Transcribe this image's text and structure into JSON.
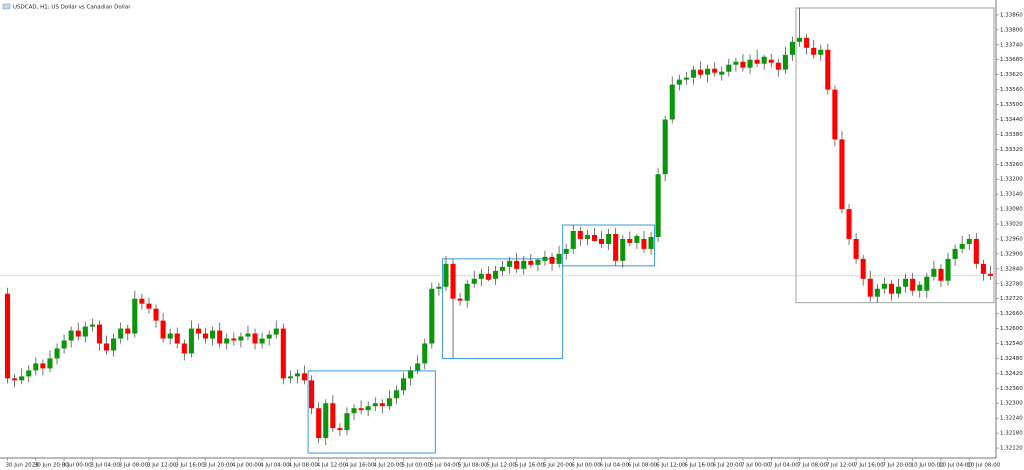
{
  "chart_data": {
    "type": "candlestick",
    "title": "USDCAD, H1: US Dollar vs Canadian Dollar",
    "up_color": "#0a960a",
    "down_color": "#ff0000",
    "ylim": [
      1.3208,
      1.3392
    ],
    "yticks": [
      {
        "value": 1.3212,
        "label": "1.32120"
      },
      {
        "value": 1.3218,
        "label": "1.32180"
      },
      {
        "value": 1.3224,
        "label": "1.32240"
      },
      {
        "value": 1.323,
        "label": "1.32300"
      },
      {
        "value": 1.3236,
        "label": "1.32360"
      },
      {
        "value": 1.3242,
        "label": "1.32420"
      },
      {
        "value": 1.3248,
        "label": "1.32480"
      },
      {
        "value": 1.3254,
        "label": "1.32540"
      },
      {
        "value": 1.326,
        "label": "1.32600"
      },
      {
        "value": 1.3266,
        "label": "1.32660"
      },
      {
        "value": 1.3272,
        "label": "1.32720"
      },
      {
        "value": 1.3278,
        "label": "1.32780"
      },
      {
        "value": 1.3284,
        "label": "1.32840"
      },
      {
        "value": 1.329,
        "label": "1.32900"
      },
      {
        "value": 1.3296,
        "label": "1.32960"
      },
      {
        "value": 1.3302,
        "label": "1.33020"
      },
      {
        "value": 1.3308,
        "label": "1.33080"
      },
      {
        "value": 1.3314,
        "label": "1.33140"
      },
      {
        "value": 1.332,
        "label": "1.33200"
      },
      {
        "value": 1.3326,
        "label": "1.33260"
      },
      {
        "value": 1.3332,
        "label": "1.33320"
      },
      {
        "value": 1.3338,
        "label": "1.33380"
      },
      {
        "value": 1.3344,
        "label": "1.33440"
      },
      {
        "value": 1.335,
        "label": "1.33500"
      },
      {
        "value": 1.3356,
        "label": "1.33560"
      },
      {
        "value": 1.3362,
        "label": "1.33620"
      },
      {
        "value": 1.3368,
        "label": "1.33680"
      },
      {
        "value": 1.3374,
        "label": "1.33740"
      },
      {
        "value": 1.338,
        "label": "1.33800"
      },
      {
        "value": 1.3386,
        "label": "1.33860"
      }
    ],
    "categories": [
      "30 Jun 2023",
      null,
      null,
      null,
      "30 Jun 20:00",
      null,
      null,
      null,
      "3 Jul 00:00",
      null,
      null,
      null,
      "3 Jul 04:00",
      null,
      null,
      null,
      "3 Jul 08:00",
      null,
      null,
      null,
      "3 Jul 12:00",
      null,
      null,
      null,
      "3 Jul 16:00",
      null,
      null,
      null,
      "3 Jul 20:00",
      null,
      null,
      null,
      "4 Jul 00:00",
      null,
      null,
      null,
      "4 Jul 04:00",
      null,
      null,
      null,
      "4 Jul 08:00",
      null,
      null,
      null,
      "4 Jul 12:00",
      null,
      null,
      null,
      "4 Jul 16:00",
      null,
      null,
      null,
      "4 Jul 20:00",
      null,
      null,
      null,
      "5 Jul 00:00",
      null,
      null,
      null,
      "5 Jul 04:00",
      null,
      null,
      null,
      "5 Jul 08:00",
      null,
      null,
      null,
      "5 Jul 12:00",
      null,
      null,
      null,
      "5 Jul 16:00",
      null,
      null,
      null,
      "5 Jul 20:00",
      null,
      null,
      null,
      "6 Jul 00:00",
      null,
      null,
      null,
      "6 Jul 04:00",
      null,
      null,
      null,
      "6 Jul 08:00",
      null,
      null,
      null,
      "6 Jul 12:00",
      null,
      null,
      null,
      "6 Jul 16:00",
      null,
      null,
      null,
      "6 Jul 20:00",
      null,
      null,
      null,
      "7 Jul 00:00",
      null,
      null,
      null,
      "7 Jul 04:00",
      null,
      null,
      null,
      "7 Jul 08:00",
      null,
      null,
      null,
      "7 Jul 12:00",
      null,
      null,
      null,
      "7 Jul 16:00",
      null,
      null,
      null,
      "7 Jul 20:00",
      null,
      null,
      null,
      "10 Jul 00:00",
      null,
      null,
      null,
      "10 Jul 04:00",
      null,
      null,
      null,
      "10 Jul 08:00",
      null,
      null,
      null
    ],
    "ohlc": [
      [
        1.3274,
        1.32764,
        1.3238,
        1.324
      ],
      [
        1.324,
        1.32416,
        1.32364,
        1.32392
      ],
      [
        1.32392,
        1.3244,
        1.32376,
        1.32408
      ],
      [
        1.32408,
        1.32452,
        1.32384,
        1.32432
      ],
      [
        1.32432,
        1.32484,
        1.32412,
        1.3246
      ],
      [
        1.3246,
        1.32476,
        1.32412,
        1.3244
      ],
      [
        1.3244,
        1.32512,
        1.32424,
        1.3248
      ],
      [
        1.3248,
        1.3254,
        1.32456,
        1.3252
      ],
      [
        1.3252,
        1.32576,
        1.325,
        1.32552
      ],
      [
        1.32552,
        1.32608,
        1.32524,
        1.32592
      ],
      [
        1.32592,
        1.32624,
        1.32552,
        1.32568
      ],
      [
        1.32568,
        1.32628,
        1.32544,
        1.32608
      ],
      [
        1.32608,
        1.3264,
        1.32588,
        1.32616
      ],
      [
        1.32616,
        1.32632,
        1.32512,
        1.3254
      ],
      [
        1.3254,
        1.32572,
        1.32496,
        1.32512
      ],
      [
        1.32512,
        1.3258,
        1.32488,
        1.3256
      ],
      [
        1.3256,
        1.32624,
        1.3254,
        1.326
      ],
      [
        1.326,
        1.32616,
        1.32552,
        1.3258
      ],
      [
        1.3258,
        1.32752,
        1.32564,
        1.3272
      ],
      [
        1.3272,
        1.3274,
        1.32676,
        1.327
      ],
      [
        1.327,
        1.32724,
        1.3266,
        1.3268
      ],
      [
        1.3268,
        1.32696,
        1.32604,
        1.32632
      ],
      [
        1.32632,
        1.32664,
        1.32544,
        1.3256
      ],
      [
        1.3256,
        1.326,
        1.32536,
        1.3258
      ],
      [
        1.3258,
        1.32604,
        1.3252,
        1.3254
      ],
      [
        1.3254,
        1.32556,
        1.32472,
        1.325
      ],
      [
        1.325,
        1.32632,
        1.32484,
        1.326
      ],
      [
        1.326,
        1.3262,
        1.32556,
        1.3258
      ],
      [
        1.3258,
        1.32604,
        1.3254,
        1.3256
      ],
      [
        1.3256,
        1.32608,
        1.32532,
        1.32592
      ],
      [
        1.32592,
        1.32624,
        1.32524,
        1.3254
      ],
      [
        1.3254,
        1.3258,
        1.32516,
        1.3256
      ],
      [
        1.3256,
        1.32584,
        1.32532,
        1.32552
      ],
      [
        1.32552,
        1.32584,
        1.32524,
        1.32568
      ],
      [
        1.32568,
        1.32612,
        1.32552,
        1.3258
      ],
      [
        1.3258,
        1.326,
        1.32516,
        1.3254
      ],
      [
        1.3254,
        1.32584,
        1.3252,
        1.3256
      ],
      [
        1.3256,
        1.32592,
        1.32532,
        1.32576
      ],
      [
        1.32576,
        1.32632,
        1.3256,
        1.326
      ],
      [
        1.326,
        1.3262,
        1.32376,
        1.324
      ],
      [
        1.324,
        1.32432,
        1.3238,
        1.32408
      ],
      [
        1.32408,
        1.32436,
        1.3238,
        1.3242
      ],
      [
        1.3242,
        1.32452,
        1.32376,
        1.32392
      ],
      [
        1.32392,
        1.32412,
        1.32256,
        1.3228
      ],
      [
        1.3228,
        1.32304,
        1.3214,
        1.3216
      ],
      [
        1.3216,
        1.32316,
        1.32132,
        1.323
      ],
      [
        1.323,
        1.32332,
        1.32184,
        1.322
      ],
      [
        1.322,
        1.3222,
        1.32168,
        1.32192
      ],
      [
        1.32192,
        1.32284,
        1.32172,
        1.3226
      ],
      [
        1.3226,
        1.32296,
        1.32232,
        1.3228
      ],
      [
        1.3228,
        1.32312,
        1.32256,
        1.32272
      ],
      [
        1.32272,
        1.32308,
        1.32248,
        1.32288
      ],
      [
        1.32288,
        1.32324,
        1.32268,
        1.323
      ],
      [
        1.323,
        1.32316,
        1.3226,
        1.32288
      ],
      [
        1.32288,
        1.32352,
        1.32272,
        1.3232
      ],
      [
        1.3232,
        1.32372,
        1.32296,
        1.32352
      ],
      [
        1.32352,
        1.32424,
        1.32332,
        1.324
      ],
      [
        1.324,
        1.32448,
        1.32372,
        1.32432
      ],
      [
        1.32432,
        1.32492,
        1.32416,
        1.3246
      ],
      [
        1.3246,
        1.3256,
        1.32436,
        1.3254
      ],
      [
        1.3254,
        1.32784,
        1.3252,
        1.3276
      ],
      [
        1.3276,
        1.32784,
        1.32732,
        1.32768
      ],
      [
        1.32768,
        1.32892,
        1.32752,
        1.3286
      ],
      [
        1.3286,
        1.3288,
        1.3248,
        1.3272
      ],
      [
        1.3272,
        1.32744,
        1.32692,
        1.32712
      ],
      [
        1.32712,
        1.32796,
        1.32684,
        1.3278
      ],
      [
        1.3278,
        1.32832,
        1.32764,
        1.328
      ],
      [
        1.328,
        1.3284,
        1.3277,
        1.3282
      ],
      [
        1.3282,
        1.3285,
        1.3279,
        1.32796
      ],
      [
        1.328,
        1.32852,
        1.32776,
        1.32832
      ],
      [
        1.32832,
        1.32872,
        1.32812,
        1.32848
      ],
      [
        1.32848,
        1.32888,
        1.3282,
        1.32872
      ],
      [
        1.32872,
        1.32904,
        1.32824,
        1.3284
      ],
      [
        1.3284,
        1.32892,
        1.32816,
        1.32872
      ],
      [
        1.32872,
        1.329,
        1.32844,
        1.32856
      ],
      [
        1.32856,
        1.32884,
        1.3283,
        1.32876
      ],
      [
        1.32872,
        1.32912,
        1.32852,
        1.32888
      ],
      [
        1.32888,
        1.32904,
        1.32832,
        1.3286
      ],
      [
        1.3286,
        1.32932,
        1.32844,
        1.329
      ],
      [
        1.329,
        1.3294,
        1.32876,
        1.3292
      ],
      [
        1.3292,
        1.33016,
        1.329,
        1.32992
      ],
      [
        1.32992,
        1.33008,
        1.32932,
        1.3296
      ],
      [
        1.3296,
        1.32996,
        1.32936,
        1.32976
      ],
      [
        1.32976,
        1.33004,
        1.3295,
        1.32952
      ],
      [
        1.3296,
        1.32992,
        1.32924,
        1.3294
      ],
      [
        1.3294,
        1.33,
        1.32916,
        1.3298
      ],
      [
        1.3298,
        1.33004,
        1.32852,
        1.32872
      ],
      [
        1.32872,
        1.32976,
        1.32844,
        1.3296
      ],
      [
        1.3296,
        1.3299,
        1.3293,
        1.32944
      ],
      [
        1.32944,
        1.3298,
        1.3292,
        1.32972
      ],
      [
        1.3296,
        1.32992,
        1.32904,
        1.3292
      ],
      [
        1.3292,
        1.32988,
        1.32896,
        1.32968
      ],
      [
        1.32968,
        1.33244,
        1.32948,
        1.3322
      ],
      [
        1.3322,
        1.33456,
        1.33192,
        1.3344
      ],
      [
        1.3344,
        1.33612,
        1.33424,
        1.3358
      ],
      [
        1.3358,
        1.3362,
        1.33556,
        1.336
      ],
      [
        1.336,
        1.33632,
        1.3358,
        1.33608
      ],
      [
        1.33608,
        1.33656,
        1.3358,
        1.3364
      ],
      [
        1.3364,
        1.33672,
        1.33604,
        1.3362
      ],
      [
        1.3362,
        1.3366,
        1.3359,
        1.33644
      ],
      [
        1.33644,
        1.3367,
        1.33612,
        1.33628
      ],
      [
        1.3362,
        1.33652,
        1.33596,
        1.33632
      ],
      [
        1.33632,
        1.33684,
        1.33612,
        1.3366
      ],
      [
        1.3366,
        1.33688,
        1.33632,
        1.33672
      ],
      [
        1.33672,
        1.33704,
        1.33632,
        1.33648
      ],
      [
        1.33648,
        1.337,
        1.33624,
        1.3368
      ],
      [
        1.3368,
        1.3372,
        1.3365,
        1.33664
      ],
      [
        1.33664,
        1.337,
        1.3364,
        1.33692
      ],
      [
        1.3368,
        1.33704,
        1.33648,
        1.33668
      ],
      [
        1.33668,
        1.33684,
        1.33612,
        1.3364
      ],
      [
        1.3364,
        1.33732,
        1.33624,
        1.337
      ],
      [
        1.337,
        1.33772,
        1.33676,
        1.33752
      ],
      [
        1.33752,
        1.33888,
        1.33732,
        1.33768
      ],
      [
        1.33768,
        1.33784,
        1.337,
        1.33728
      ],
      [
        1.33728,
        1.3376,
        1.33684,
        1.337
      ],
      [
        1.337,
        1.3374,
        1.33676,
        1.3372
      ],
      [
        1.3372,
        1.33744,
        1.3354,
        1.3356
      ],
      [
        1.3356,
        1.33576,
        1.33332,
        1.3336
      ],
      [
        1.3336,
        1.33392,
        1.33064,
        1.3308
      ],
      [
        1.3308,
        1.331,
        1.32936,
        1.3296
      ],
      [
        1.3296,
        1.32984,
        1.3286,
        1.3288
      ],
      [
        1.3288,
        1.32896,
        1.32772,
        1.328
      ],
      [
        1.328,
        1.32832,
        1.32708,
        1.32728
      ],
      [
        1.32728,
        1.3278,
        1.32704,
        1.3276
      ],
      [
        1.3276,
        1.32804,
        1.3274,
        1.3278
      ],
      [
        1.3278,
        1.32796,
        1.32712,
        1.3274
      ],
      [
        1.3274,
        1.328,
        1.32724,
        1.32768
      ],
      [
        1.32768,
        1.3282,
        1.32744,
        1.328
      ],
      [
        1.328,
        1.32824,
        1.32732,
        1.32752
      ],
      [
        1.32752,
        1.3279,
        1.32724,
        1.32776
      ],
      [
        1.32752,
        1.32824,
        1.32724,
        1.32808
      ],
      [
        1.32808,
        1.32872,
        1.32792,
        1.3284
      ],
      [
        1.3284,
        1.3286,
        1.32768,
        1.32792
      ],
      [
        1.32792,
        1.32904,
        1.32772,
        1.3288
      ],
      [
        1.3288,
        1.32936,
        1.32852,
        1.3292
      ],
      [
        1.3292,
        1.32972,
        1.32904,
        1.3294
      ],
      [
        1.3294,
        1.3298,
        1.32916,
        1.3296
      ],
      [
        1.3296,
        1.32984,
        1.3284,
        1.3286
      ],
      [
        1.3286,
        1.32876,
        1.32792,
        1.3282
      ],
      [
        1.3282,
        1.32852,
        1.32796,
        1.32812
      ]
    ],
    "boxes": [
      {
        "start": 43,
        "end": 60,
        "top": 1.3243,
        "bottom": 1.321,
        "color": "#3a9ad9"
      },
      {
        "start": 62,
        "end": 78,
        "top": 1.3288,
        "bottom": 1.3248,
        "color": "#3a9ad9"
      },
      {
        "start": 79,
        "end": 91,
        "top": 1.33016,
        "bottom": 1.32852,
        "color": "#3a9ad9"
      },
      {
        "start": 112,
        "end": 139,
        "top": 1.33888,
        "bottom": 1.32704,
        "color": "#a0a0a0"
      }
    ],
    "last_price_line": true
  }
}
